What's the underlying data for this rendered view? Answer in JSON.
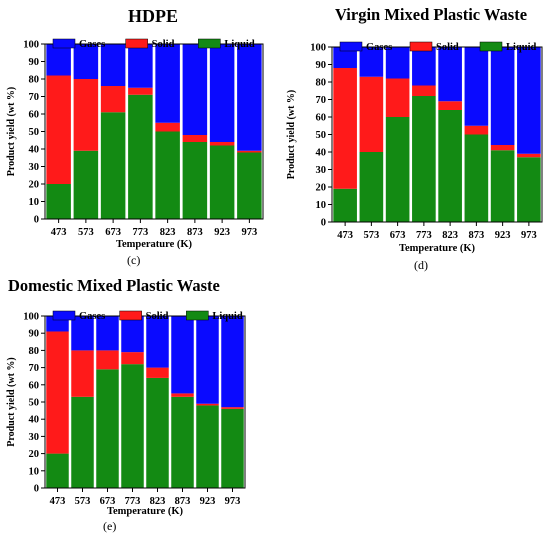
{
  "colors": {
    "gases": "#0a0aff",
    "solid": "#ff1a1a",
    "liquid": "#138a13",
    "frame": "#000000"
  },
  "chart_data": [
    {
      "type": "bar",
      "stacked": true,
      "title": "HDPE",
      "panel_label": "(c)",
      "xlabel": "Temperature (K)",
      "ylabel": "Product yield (wt %)",
      "ylim": [
        0,
        100
      ],
      "yticks": [
        0,
        10,
        20,
        30,
        40,
        50,
        60,
        70,
        80,
        90,
        100
      ],
      "legend": [
        "Gases",
        "Solid",
        "Liquid"
      ],
      "legend_position": "top",
      "categories": [
        "473",
        "573",
        "673",
        "773",
        "823",
        "873",
        "923",
        "973"
      ],
      "series": [
        {
          "name": "Liquid",
          "values": [
            20,
            39,
            61,
            71,
            50,
            44,
            42,
            38
          ]
        },
        {
          "name": "Solid",
          "values": [
            62,
            41,
            15,
            4,
            5,
            4,
            2,
            1
          ]
        },
        {
          "name": "Gases",
          "values": [
            18,
            20,
            24,
            25,
            45,
            52,
            56,
            61
          ]
        }
      ]
    },
    {
      "type": "bar",
      "stacked": true,
      "title": "Virgin Mixed Plastic Waste",
      "panel_label": "(d)",
      "xlabel": "Temperature (K)",
      "ylabel": "Product yield (wt %)",
      "ylim": [
        0,
        100
      ],
      "yticks": [
        0,
        10,
        20,
        30,
        40,
        50,
        60,
        70,
        80,
        90,
        100
      ],
      "legend": [
        "Gases",
        "Solid",
        "Liquid"
      ],
      "legend_position": "top",
      "categories": [
        "473",
        "573",
        "673",
        "773",
        "823",
        "873",
        "923",
        "973"
      ],
      "series": [
        {
          "name": "Liquid",
          "values": [
            19,
            40,
            60,
            72,
            64,
            50,
            41,
            37
          ]
        },
        {
          "name": "Solid",
          "values": [
            69,
            43,
            22,
            6,
            5,
            5,
            3,
            2
          ]
        },
        {
          "name": "Gases",
          "values": [
            12,
            17,
            18,
            22,
            31,
            45,
            56,
            61
          ]
        }
      ]
    },
    {
      "type": "bar",
      "stacked": true,
      "title": "Domestic Mixed Plastic Waste",
      "panel_label": "(e)",
      "xlabel": "Temperature (K)",
      "ylabel": "Product yield (wt %)",
      "ylim": [
        0,
        100
      ],
      "yticks": [
        0,
        10,
        20,
        30,
        40,
        50,
        60,
        70,
        80,
        90,
        100
      ],
      "legend": [
        "Gases",
        "Solid",
        "Liquid"
      ],
      "legend_position": "top",
      "categories": [
        "473",
        "573",
        "673",
        "773",
        "823",
        "873",
        "923",
        "973"
      ],
      "series": [
        {
          "name": "Liquid",
          "values": [
            20,
            53,
            69,
            72,
            64,
            53,
            48,
            46
          ]
        },
        {
          "name": "Solid",
          "values": [
            71,
            27,
            11,
            7,
            6,
            2,
            1,
            1
          ]
        },
        {
          "name": "Gases",
          "values": [
            9,
            20,
            20,
            21,
            30,
            45,
            51,
            53
          ]
        }
      ]
    }
  ]
}
